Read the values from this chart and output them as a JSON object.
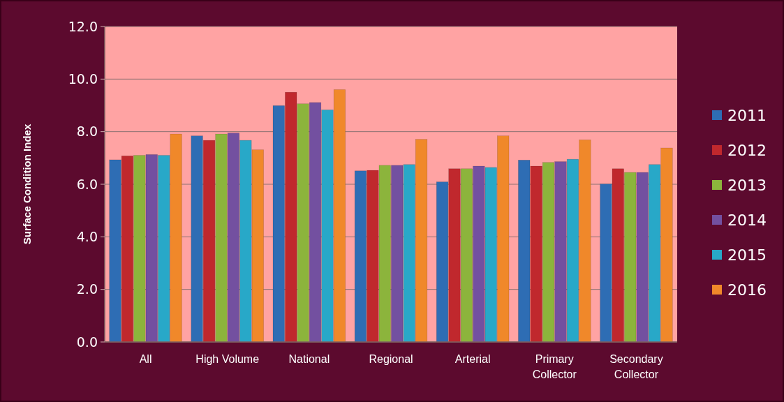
{
  "chart_data": {
    "type": "bar",
    "ylabel": "Surface Condition Index",
    "categories": [
      "All",
      "High Volume",
      "National",
      "Regional",
      "Arterial",
      "Primary Collector",
      "Secondary Collector"
    ],
    "series": [
      {
        "name": "2011",
        "color": "#2e6db4",
        "values": [
          6.93,
          7.84,
          8.99,
          6.51,
          6.09,
          6.92,
          6.01
        ]
      },
      {
        "name": "2012",
        "color": "#c0282d",
        "values": [
          7.08,
          7.67,
          9.5,
          6.53,
          6.59,
          6.69,
          6.59
        ]
      },
      {
        "name": "2013",
        "color": "#8cb43c",
        "values": [
          7.1,
          7.91,
          9.06,
          6.72,
          6.59,
          6.83,
          6.45
        ]
      },
      {
        "name": "2014",
        "color": "#7350a0",
        "values": [
          7.13,
          7.95,
          9.11,
          6.72,
          6.69,
          6.86,
          6.45
        ]
      },
      {
        "name": "2015",
        "color": "#28a8c8",
        "values": [
          7.1,
          7.67,
          8.83,
          6.75,
          6.64,
          6.95,
          6.75
        ]
      },
      {
        "name": "2016",
        "color": "#f0882a",
        "values": [
          7.91,
          7.31,
          9.6,
          7.71,
          7.84,
          7.69,
          7.38
        ]
      }
    ],
    "ylim": [
      0,
      12
    ],
    "yticks": [
      {
        "value": 0,
        "label": "0.0"
      },
      {
        "value": 2,
        "label": "2.0"
      },
      {
        "value": 4,
        "label": "4.0"
      },
      {
        "value": 6,
        "label": "6.0"
      },
      {
        "value": 8,
        "label": "8.0"
      },
      {
        "value": 10,
        "label": "10.0"
      },
      {
        "value": 12,
        "label": "12.0"
      }
    ],
    "grid": "y",
    "legend": "right"
  }
}
